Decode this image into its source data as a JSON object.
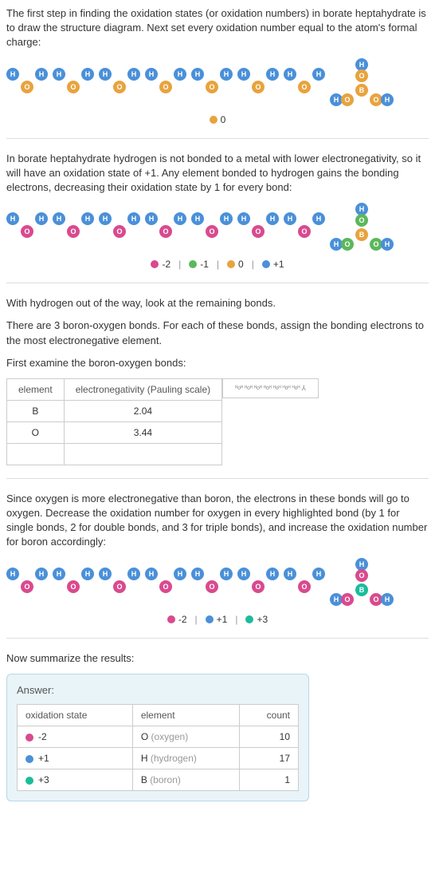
{
  "intro1": "The first step in finding the oxidation states (or oxidation numbers) in borate heptahydrate is to draw the structure diagram. Next set every oxidation number equal to the atom's formal charge:",
  "intro2": "In borate heptahydrate hydrogen is not bonded to a metal with lower electronegativity, so it will have an oxidation state of +1. Any element bonded to hydrogen gains the bonding electrons, decreasing their oxidation state by 1 for every bond:",
  "intro3": "With hydrogen out of the way, look at the remaining bonds.",
  "intro4": "There are 3 boron-oxygen bonds.  For each of these bonds, assign the bonding electrons to the most electronegative element.",
  "intro5": "First examine the boron-oxygen bonds:",
  "intro6": "Since oxygen is more electronegative than boron, the electrons in these bonds will go to oxygen. Decrease the oxidation number for oxygen in every highlighted bond (by 1 for single bonds, 2 for double bonds, and 3 for triple bonds), and increase the oxidation number for boron accordingly:",
  "intro7": "Now summarize the results:",
  "legend1": {
    "items": [
      {
        "color": "#e8a33d",
        "label": "0"
      }
    ]
  },
  "legend2": {
    "items": [
      {
        "color": "#d94a8e",
        "label": "-2"
      },
      {
        "color": "#5cb85c",
        "label": "-1"
      },
      {
        "color": "#e8a33d",
        "label": "0"
      },
      {
        "color": "#4a90d9",
        "label": "+1"
      }
    ]
  },
  "legend3": {
    "items": [
      {
        "color": "#d94a8e",
        "label": "-2"
      },
      {
        "color": "#4a90d9",
        "label": "+1"
      },
      {
        "color": "#1abc9c",
        "label": "+3"
      }
    ]
  },
  "en": {
    "h_element": "element",
    "h_en": "electronegativity (Pauling scale)",
    "r1e": "B",
    "r1v": "2.04",
    "r2e": "O",
    "r2v": "3.44"
  },
  "answer": {
    "title": "Answer:",
    "h_ox": "oxidation state",
    "h_el": "element",
    "h_ct": "count",
    "rows": [
      {
        "color": "#d94a8e",
        "ox": "-2",
        "el": "O",
        "elname": "(oxygen)",
        "ct": "10"
      },
      {
        "color": "#4a90d9",
        "ox": "+1",
        "el": "H",
        "elname": "(hydrogen)",
        "ct": "17"
      },
      {
        "color": "#1abc9c",
        "ox": "+3",
        "el": "B",
        "elname": "(boron)",
        "ct": "1"
      }
    ]
  },
  "atoms": {
    "H": "H",
    "O": "O",
    "B": "B"
  },
  "colors": {
    "h": "#4a90d9",
    "o": "#e8a33d",
    "pink": "#d94a8e",
    "green": "#5cb85c",
    "teal": "#1abc9c"
  }
}
